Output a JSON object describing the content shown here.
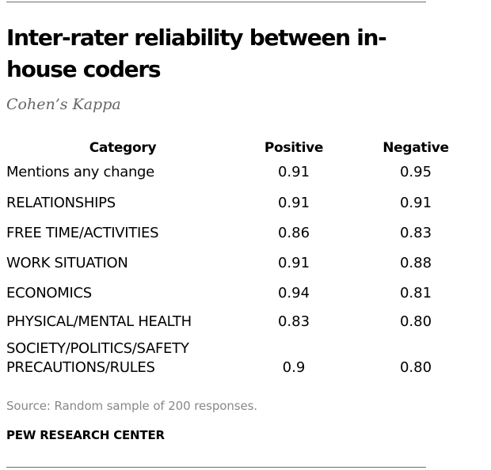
{
  "title": "Inter-rater reliability between in-house coders",
  "subtitle": "Cohen’s Kappa",
  "table": {
    "headers": {
      "category": "Category",
      "positive": "Positive",
      "negative": "Negative"
    },
    "rows": [
      {
        "category_lines": [
          "Mentions any change"
        ],
        "positive": "0.91",
        "negative": "0.95"
      },
      {
        "category_lines": [
          "RELATIONSHIPS"
        ],
        "positive": "0.91",
        "negative": "0.91"
      },
      {
        "category_lines": [
          "FREE TIME/ACTIVITIES"
        ],
        "positive": "0.86",
        "negative": "0.83"
      },
      {
        "category_lines": [
          "WORK SITUATION"
        ],
        "positive": "0.91",
        "negative": "0.88"
      },
      {
        "category_lines": [
          "ECONOMICS"
        ],
        "positive": "0.94",
        "negative": "0.81"
      },
      {
        "category_lines": [
          "PHYSICAL/MENTAL HEALTH"
        ],
        "positive": "0.83",
        "negative": "0.80"
      },
      {
        "category_lines": [
          "SOCIETY/POLITICS/SAFETY",
          "PRECAUTIONS/RULES"
        ],
        "positive": "0.9",
        "negative": "0.80"
      }
    ]
  },
  "source": "Source: Random sample of 200 responses.",
  "organization": "PEW RESEARCH CENTER"
}
